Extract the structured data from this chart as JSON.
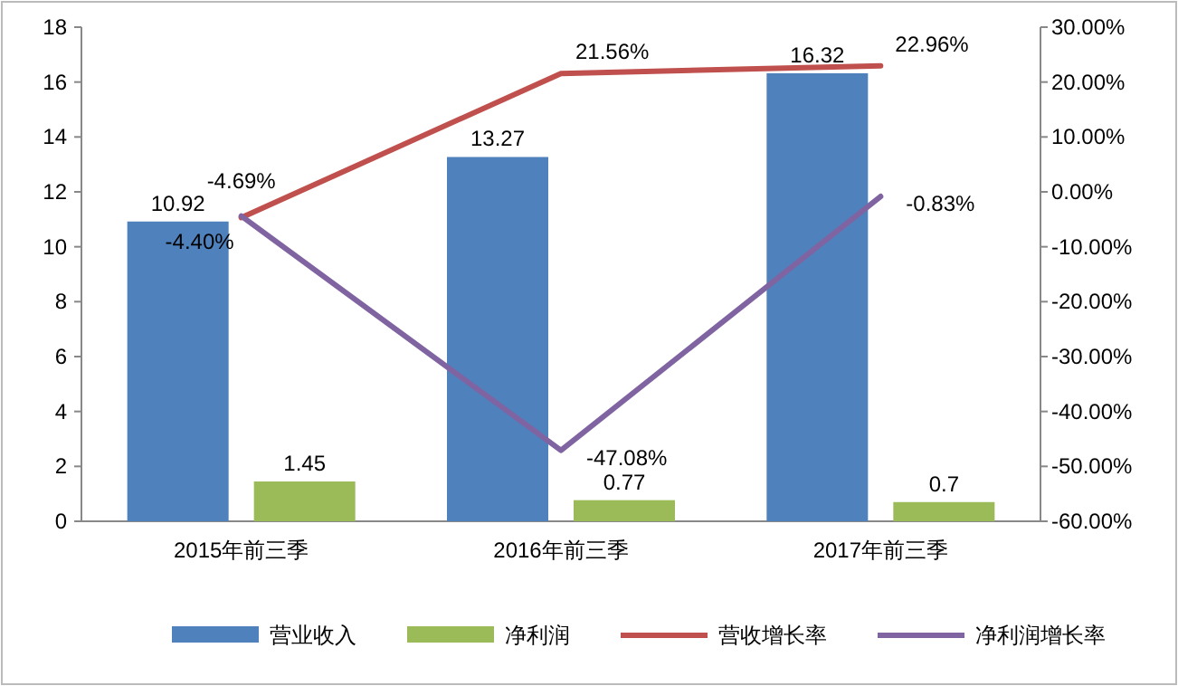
{
  "chart_data": {
    "type": "bar",
    "categories": [
      "2015年前三季",
      "2016年前三季",
      "2017年前三季"
    ],
    "series": [
      {
        "name": "营业收入",
        "color": "#4f81bd",
        "values": [
          10.92,
          13.27,
          16.32
        ],
        "value_labels": [
          "10.92",
          "13.27",
          "16.32"
        ]
      },
      {
        "name": "净利润",
        "color": "#9bbb59",
        "values": [
          1.45,
          0.77,
          0.7
        ],
        "value_labels": [
          "1.45",
          "0.77",
          "0.7"
        ]
      },
      {
        "name": "营收增长率",
        "type": "line",
        "axis": "y2",
        "color": "#c0504d",
        "values": [
          -4.69,
          21.56,
          22.96
        ],
        "value_labels": [
          "-4.69%",
          "21.56%",
          "22.96%"
        ]
      },
      {
        "name": "净利润增长率",
        "type": "line",
        "axis": "y2",
        "color": "#8064a2",
        "values": [
          -4.4,
          -47.08,
          -0.83
        ],
        "value_labels": [
          "-4.40%",
          "-47.08%",
          "-0.83%"
        ]
      }
    ],
    "ylim": [
      0,
      18
    ],
    "yticks": [
      0,
      2,
      4,
      6,
      8,
      10,
      12,
      14,
      16,
      18
    ],
    "y2lim": [
      -60,
      30
    ],
    "y2ticks": [
      {
        "value": -60,
        "label": "-60.00%"
      },
      {
        "value": -50,
        "label": "-50.00%"
      },
      {
        "value": -40,
        "label": "-40.00%"
      },
      {
        "value": -30,
        "label": "-30.00%"
      },
      {
        "value": -20,
        "label": "-20.00%"
      },
      {
        "value": -10,
        "label": "-10.00%"
      },
      {
        "value": 0,
        "label": "0.00%"
      },
      {
        "value": 10,
        "label": "10.00%"
      },
      {
        "value": 20,
        "label": "20.00%"
      },
      {
        "value": 30,
        "label": "30.00%"
      }
    ],
    "legend": "bottom"
  }
}
